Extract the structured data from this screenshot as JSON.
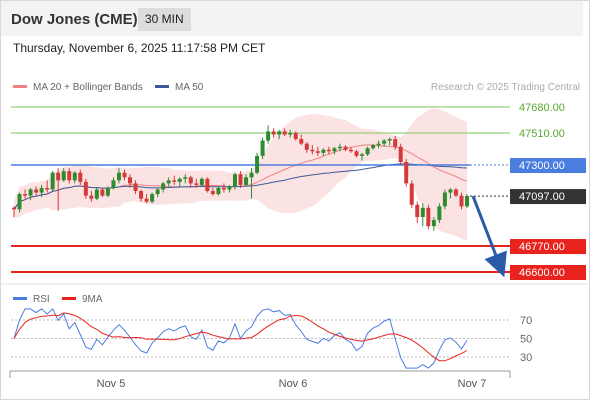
{
  "header": {
    "title": "Dow Jones (CME)",
    "timeframe": "30 MIN",
    "datetime": "Thursday, November 6, 2025 11:17:58 PM CET"
  },
  "legend": {
    "bb_label": "MA 20 + Bollinger Bands",
    "ma50_label": "MA 50",
    "credit": "Research © 2025 Trading Central",
    "bb_color": "#f08080",
    "ma50_color": "#3a5a9a"
  },
  "chart_data": [
    {
      "type": "candlestick",
      "title": "",
      "levels": [
        {
          "value": 47680.0,
          "label": "47680.00",
          "color": "#7cc95a",
          "style": "green-line"
        },
        {
          "value": 47510.0,
          "label": "47510.00",
          "color": "#7cc95a",
          "style": "green-line"
        },
        {
          "value": 47300.0,
          "label": "47300.00",
          "color": "#4a7de0",
          "style": "blue-line"
        },
        {
          "value": 47097.0,
          "label": "47097.00",
          "color": "#333333",
          "style": "last-price"
        },
        {
          "value": 46770.0,
          "label": "46770.00",
          "color": "#e8231e",
          "style": "red-line"
        },
        {
          "value": 46600.0,
          "label": "46600.00",
          "color": "#e8231e",
          "style": "red-line"
        }
      ],
      "x_ticks": [
        "Nov 5",
        "Nov 6",
        "Nov 7"
      ],
      "forecast_arrow": {
        "from": 47097,
        "to": 46600,
        "color": "#2a5ba8"
      },
      "candles": [
        [
          47020,
          47030,
          46960,
          47010
        ],
        [
          47010,
          47120,
          46990,
          47110
        ],
        [
          47110,
          47140,
          47080,
          47100
        ],
        [
          47100,
          47150,
          47070,
          47140
        ],
        [
          47140,
          47160,
          47100,
          47120
        ],
        [
          47120,
          47170,
          47090,
          47150
        ],
        [
          47150,
          47200,
          47120,
          47140
        ],
        [
          47140,
          47260,
          47130,
          47250
        ],
        [
          47250,
          47280,
          47000,
          47200
        ],
        [
          47200,
          47280,
          47190,
          47260
        ],
        [
          47260,
          47280,
          47180,
          47200
        ],
        [
          47200,
          47260,
          47180,
          47250
        ],
        [
          47250,
          47270,
          47170,
          47190
        ],
        [
          47190,
          47210,
          47080,
          47100
        ],
        [
          47100,
          47130,
          47060,
          47080
        ],
        [
          47080,
          47150,
          47070,
          47140
        ],
        [
          47140,
          47150,
          47090,
          47100
        ],
        [
          47100,
          47160,
          47090,
          47150
        ],
        [
          47150,
          47220,
          47140,
          47200
        ],
        [
          47200,
          47280,
          47180,
          47250
        ],
        [
          47250,
          47270,
          47200,
          47220
        ],
        [
          47220,
          47240,
          47150,
          47180
        ],
        [
          47180,
          47200,
          47110,
          47130
        ],
        [
          47130,
          47140,
          47060,
          47080
        ],
        [
          47080,
          47110,
          47050,
          47060
        ],
        [
          47060,
          47120,
          47050,
          47110
        ],
        [
          47110,
          47150,
          47090,
          47140
        ],
        [
          47140,
          47190,
          47120,
          47180
        ],
        [
          47180,
          47220,
          47160,
          47200
        ],
        [
          47200,
          47230,
          47170,
          47190
        ],
        [
          47190,
          47220,
          47160,
          47210
        ],
        [
          47210,
          47240,
          47180,
          47220
        ],
        [
          47220,
          47230,
          47160,
          47180
        ],
        [
          47180,
          47210,
          47150,
          47170
        ],
        [
          47170,
          47220,
          47160,
          47210
        ],
        [
          47210,
          47220,
          47120,
          47130
        ],
        [
          47130,
          47150,
          47100,
          47110
        ],
        [
          47110,
          47160,
          47100,
          47150
        ],
        [
          47150,
          47180,
          47120,
          47140
        ],
        [
          47140,
          47170,
          47120,
          47160
        ],
        [
          47160,
          47250,
          47140,
          47240
        ],
        [
          47240,
          47260,
          47150,
          47170
        ],
        [
          47170,
          47240,
          47160,
          47220
        ],
        [
          47220,
          47280,
          47080,
          47250
        ],
        [
          47250,
          47380,
          47240,
          47360
        ],
        [
          47360,
          47480,
          47340,
          47460
        ],
        [
          47460,
          47560,
          47440,
          47520
        ],
        [
          47520,
          47540,
          47480,
          47500
        ],
        [
          47500,
          47530,
          47470,
          47520
        ],
        [
          47520,
          47540,
          47490,
          47500
        ],
        [
          47500,
          47530,
          47480,
          47510
        ],
        [
          47510,
          47520,
          47460,
          47470
        ],
        [
          47470,
          47500,
          47430,
          47440
        ],
        [
          47440,
          47450,
          47380,
          47400
        ],
        [
          47400,
          47430,
          47370,
          47390
        ],
        [
          47390,
          47420,
          47360,
          47380
        ],
        [
          47380,
          47410,
          47360,
          47400
        ],
        [
          47400,
          47420,
          47370,
          47390
        ],
        [
          47390,
          47420,
          47370,
          47410
        ],
        [
          47410,
          47440,
          47390,
          47420
        ],
        [
          47420,
          47430,
          47390,
          47400
        ],
        [
          47400,
          47420,
          47380,
          47390
        ],
        [
          47390,
          47400,
          47350,
          47360
        ],
        [
          47360,
          47380,
          47330,
          47370
        ],
        [
          47370,
          47420,
          47360,
          47410
        ],
        [
          47410,
          47440,
          47400,
          47430
        ],
        [
          47430,
          47460,
          47410,
          47440
        ],
        [
          47440,
          47470,
          47420,
          47460
        ],
        [
          47460,
          47480,
          47430,
          47470
        ],
        [
          47470,
          47490,
          47400,
          47420
        ],
        [
          47420,
          47440,
          47300,
          47320
        ],
        [
          47320,
          47340,
          47160,
          47180
        ],
        [
          47180,
          47200,
          47020,
          47040
        ],
        [
          47040,
          47060,
          46920,
          46960
        ],
        [
          46960,
          47050,
          46900,
          47020
        ],
        [
          47020,
          47040,
          46880,
          46900
        ],
        [
          46900,
          46960,
          46870,
          46940
        ],
        [
          46940,
          47050,
          46920,
          47030
        ],
        [
          47030,
          47140,
          47010,
          47120
        ],
        [
          47120,
          47150,
          47080,
          47140
        ],
        [
          47140,
          47150,
          47090,
          47100
        ],
        [
          47100,
          47120,
          47010,
          47030
        ],
        [
          47030,
          47110,
          47020,
          47097
        ]
      ]
    },
    {
      "type": "line",
      "title": "",
      "series": [
        {
          "name": "RSI",
          "color": "#4a7de0"
        },
        {
          "name": "9MA",
          "color": "#e8231e"
        }
      ],
      "y_ticks": [
        70,
        50,
        30
      ],
      "ylim": [
        15,
        85
      ]
    }
  ]
}
